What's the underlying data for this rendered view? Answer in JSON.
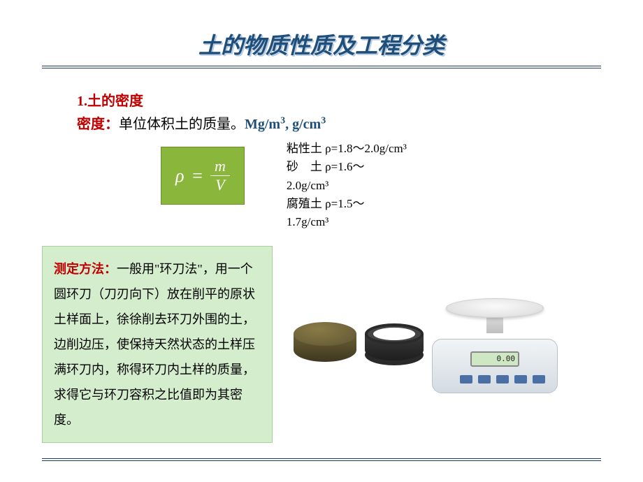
{
  "title": "土的物质性质及工程分类",
  "section": {
    "number": "1.",
    "heading": "土的密度",
    "density_label": "密度：",
    "density_text": "单位体积土的质量。",
    "units_html": "Mg/m³, g/cm³"
  },
  "formula": {
    "lhs": "ρ",
    "eq": "=",
    "numerator": "m",
    "denominator": "V",
    "box_bg": "#8bb63c",
    "text_color": "#ffffff"
  },
  "density_values": {
    "line1": "粘性土 ρ=1.8～2.0g/cm³",
    "line2a": "砂　土 ρ=1.6～",
    "line2b": "2.0g/cm³",
    "line3a": "腐殖土 ρ=1.5～",
    "line3b": "1.7g/cm³"
  },
  "method": {
    "label": "测定方法：",
    "text": "一般用\"环刀法\"，用一个圆环刀（刀刃向下）放在削平的原状土样面上，徐徐削去环刀外围的土，边削边压，使保持天然状态的土样压满环刀内，称得环刀内土样的质量，求得它与环刀容积之比值即为其密度。",
    "box_bg": "#d4eecd"
  },
  "scale_display": "0.00",
  "colors": {
    "accent_red": "#c00000",
    "accent_blue": "#1f4e79",
    "rule": "#1f3864"
  }
}
